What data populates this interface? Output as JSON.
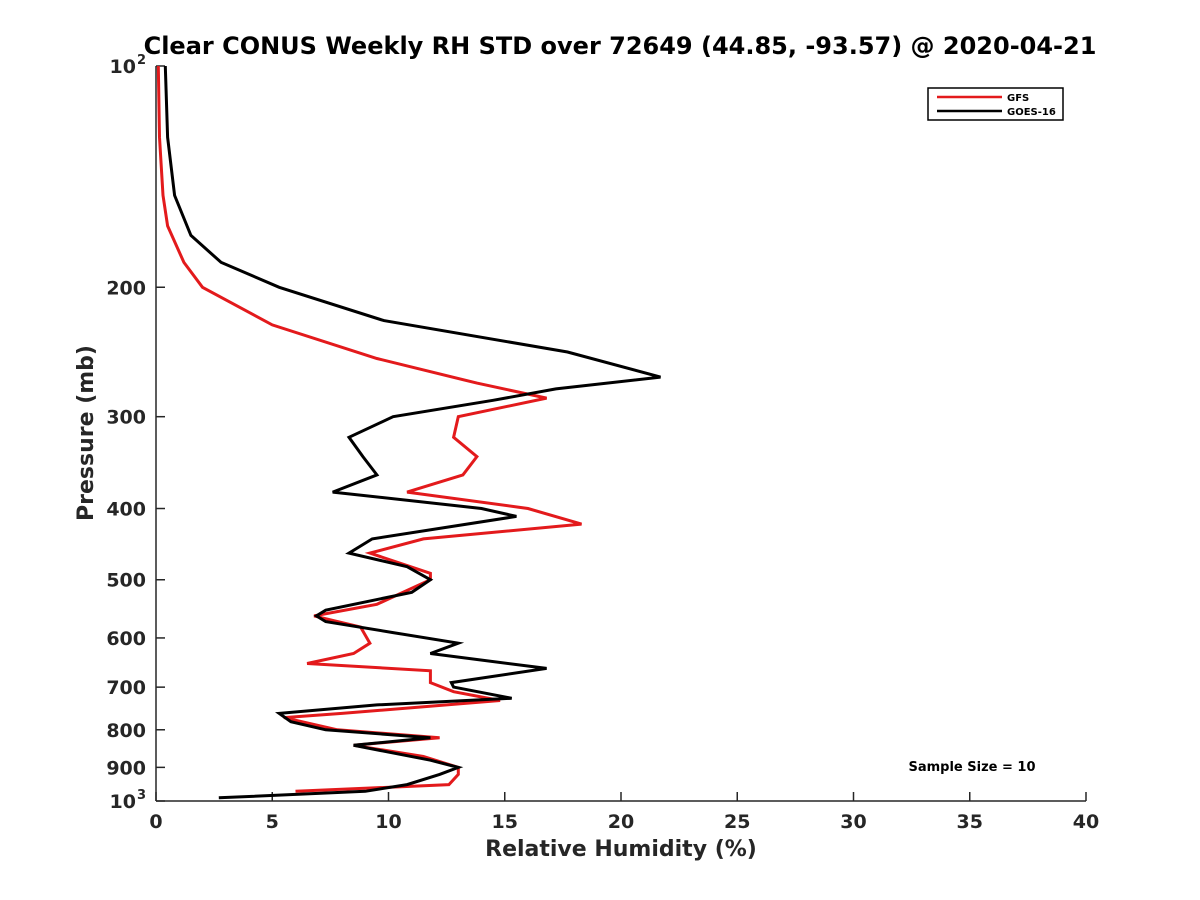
{
  "chart_data": {
    "type": "line",
    "title": "Clear CONUS Weekly RH STD over 72649 (44.85, -93.57) @ 2020-04-21",
    "xlabel": "Relative Humidity (%)",
    "ylabel": "Pressure (mb)",
    "xlim": [
      0,
      40
    ],
    "ylim": [
      100,
      1000
    ],
    "y_scale": "log",
    "y_reversed": true,
    "x_ticks": [
      "0",
      "5",
      "10",
      "15",
      "20",
      "25",
      "30",
      "35",
      "40"
    ],
    "y_ticks": [
      {
        "value": 100,
        "label": "10",
        "exp": "2"
      },
      {
        "value": 200,
        "label": "200",
        "exp": ""
      },
      {
        "value": 300,
        "label": "300",
        "exp": ""
      },
      {
        "value": 400,
        "label": "400",
        "exp": ""
      },
      {
        "value": 500,
        "label": "500",
        "exp": ""
      },
      {
        "value": 600,
        "label": "600",
        "exp": ""
      },
      {
        "value": 700,
        "label": "700",
        "exp": ""
      },
      {
        "value": 800,
        "label": "800",
        "exp": ""
      },
      {
        "value": 900,
        "label": "900",
        "exp": ""
      },
      {
        "value": 1000,
        "label": "10",
        "exp": "3"
      }
    ],
    "legend_position": "top-right",
    "annotation": "Sample Size = 10",
    "series": [
      {
        "name": "GFS",
        "color": "#e31a1c",
        "points": [
          [
            0.1,
            100
          ],
          [
            0.15,
            125
          ],
          [
            0.3,
            150
          ],
          [
            0.5,
            165
          ],
          [
            1.2,
            185
          ],
          [
            2.0,
            200
          ],
          [
            5.0,
            225
          ],
          [
            9.5,
            250
          ],
          [
            13.8,
            270
          ],
          [
            16.8,
            283
          ],
          [
            13.0,
            300
          ],
          [
            12.8,
            320
          ],
          [
            13.8,
            340
          ],
          [
            13.2,
            360
          ],
          [
            10.8,
            380
          ],
          [
            16.0,
            400
          ],
          [
            18.3,
            420
          ],
          [
            11.5,
            440
          ],
          [
            9.2,
            460
          ],
          [
            11.8,
            490
          ],
          [
            11.8,
            500
          ],
          [
            9.5,
            540
          ],
          [
            6.8,
            560
          ],
          [
            8.8,
            580
          ],
          [
            9.2,
            610
          ],
          [
            8.5,
            630
          ],
          [
            6.5,
            650
          ],
          [
            11.8,
            665
          ],
          [
            11.8,
            690
          ],
          [
            12.8,
            710
          ],
          [
            14.8,
            730
          ],
          [
            8.0,
            760
          ],
          [
            5.5,
            770
          ],
          [
            7.8,
            800
          ],
          [
            12.2,
            820
          ],
          [
            8.5,
            840
          ],
          [
            11.5,
            870
          ],
          [
            13.0,
            900
          ],
          [
            13.0,
            920
          ],
          [
            12.6,
            950
          ],
          [
            6.0,
            970
          ]
        ]
      },
      {
        "name": "GOES-16",
        "color": "#000000",
        "points": [
          [
            0.4,
            100
          ],
          [
            0.5,
            125
          ],
          [
            0.8,
            150
          ],
          [
            1.5,
            170
          ],
          [
            2.8,
            185
          ],
          [
            5.3,
            200
          ],
          [
            9.8,
            222
          ],
          [
            17.7,
            245
          ],
          [
            21.7,
            265
          ],
          [
            17.2,
            275
          ],
          [
            14.5,
            285
          ],
          [
            10.2,
            300
          ],
          [
            8.3,
            320
          ],
          [
            8.9,
            340
          ],
          [
            9.5,
            360
          ],
          [
            7.6,
            380
          ],
          [
            14.0,
            400
          ],
          [
            15.5,
            410
          ],
          [
            9.3,
            440
          ],
          [
            8.3,
            460
          ],
          [
            10.8,
            480
          ],
          [
            11.8,
            500
          ],
          [
            11.0,
            520
          ],
          [
            7.3,
            550
          ],
          [
            6.9,
            560
          ],
          [
            7.3,
            570
          ],
          [
            10.2,
            590
          ],
          [
            13.0,
            610
          ],
          [
            11.8,
            630
          ],
          [
            16.8,
            660
          ],
          [
            12.7,
            690
          ],
          [
            12.8,
            700
          ],
          [
            15.3,
            725
          ],
          [
            9.5,
            740
          ],
          [
            5.3,
            760
          ],
          [
            5.8,
            780
          ],
          [
            7.3,
            800
          ],
          [
            11.8,
            820
          ],
          [
            8.5,
            840
          ],
          [
            11.8,
            880
          ],
          [
            13.0,
            900
          ],
          [
            12.2,
            920
          ],
          [
            10.8,
            950
          ],
          [
            9.0,
            970
          ],
          [
            2.7,
            990
          ]
        ]
      }
    ]
  }
}
